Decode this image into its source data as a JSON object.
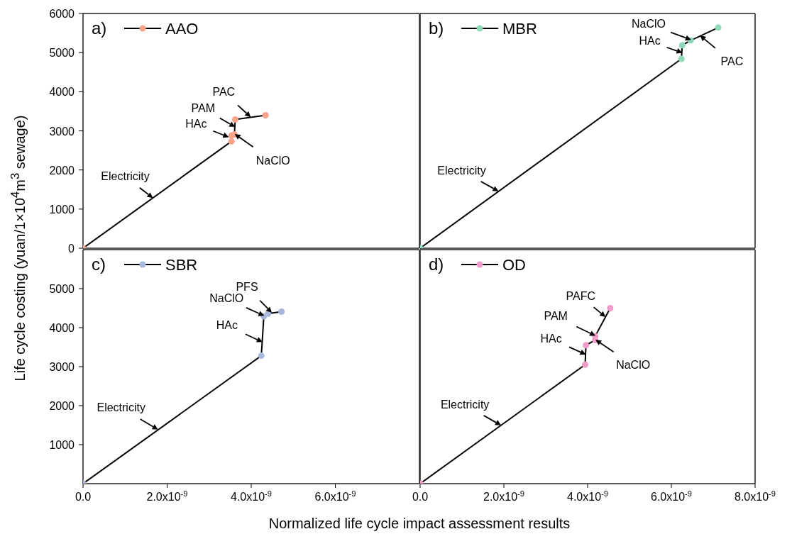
{
  "chart_data": [
    {
      "type": "line",
      "title": "a)",
      "ylabel": "Life cycle costing (yuan/1×10$^{4}$m$^{3}$ sewage)",
      "legend": "top left",
      "marker": "circle",
      "line_style": "solid",
      "tick_labels": "y",
      "xlim": [
        0,
        8e-09
      ],
      "ylim": [
        0,
        6000
      ],
      "yticks": [
        0,
        1000,
        2000,
        3000,
        4000,
        5000,
        6000
      ],
      "series": [
        {
          "name": "AAO",
          "color": "#f9a38a",
          "x": [
            0,
            3.53e-09,
            3.53e-09,
            3.6e-09,
            3.62e-09,
            4.34e-09
          ],
          "values": [
            0,
            2730,
            2880,
            2910,
            3290,
            3400
          ]
        }
      ],
      "annotations": [
        {
          "text": "Electricity",
          "x": 1.66e-09,
          "y": 1280
        },
        {
          "text": "PAC",
          "x": 3.98e-09,
          "y": 3340
        },
        {
          "text": "PAM",
          "x": 3.61e-09,
          "y": 3090
        },
        {
          "text": "HAc",
          "x": 3.46e-09,
          "y": 2830
        },
        {
          "text": "NaClO",
          "x": 3.6e-09,
          "y": 2910
        }
      ]
    },
    {
      "type": "line",
      "title": "b)",
      "legend": "top left",
      "marker": "circle",
      "line_style": "solid",
      "tick_labels": false,
      "xlim": [
        0,
        8e-09
      ],
      "ylim": [
        0,
        6000
      ],
      "series": [
        {
          "name": "MBR",
          "color": "#8fd8b8",
          "x": [
            0,
            6.24e-09,
            6.26e-09,
            6.46e-09,
            7.12e-09
          ],
          "values": [
            0,
            4840,
            5190,
            5310,
            5640
          ]
        }
      ],
      "annotations": [
        {
          "text": "NaClO",
          "x": 6.46e-09,
          "y": 5310
        },
        {
          "text": "HAc",
          "x": 6.25e-09,
          "y": 4980
        },
        {
          "text": "PAC",
          "x": 6.67e-09,
          "y": 5420
        },
        {
          "text": "Electricity",
          "x": 1.87e-09,
          "y": 1450
        }
      ]
    },
    {
      "type": "line",
      "title": "c)",
      "xlabel": "Normalized life cycle impact assessment results",
      "legend": "top left",
      "marker": "circle",
      "line_style": "solid",
      "xlim": [
        0,
        8e-09
      ],
      "xticks": [
        {
          "value": 0,
          "label": "0.0"
        },
        {
          "value": 2e-09,
          "label": "2.0x10$^{-9}$"
        },
        {
          "value": 4e-09,
          "label": "4.0x10$^{-9}$"
        },
        {
          "value": 6e-09,
          "label": "6.0x10$^{-9}$"
        }
      ],
      "ylim": [
        0,
        6000
      ],
      "yticks": [
        1000,
        2000,
        3000,
        4000,
        5000
      ],
      "series": [
        {
          "name": "SBR",
          "color": "#a7b8dc",
          "x": [
            0,
            4.24e-09,
            4.3e-09,
            4.4e-09,
            4.72e-09
          ],
          "values": [
            0,
            3280,
            4290,
            4360,
            4410
          ]
        }
      ],
      "annotations": [
        {
          "text": "PFS",
          "x": 4.48e-09,
          "y": 4370
        },
        {
          "text": "NaClO",
          "x": 4.3e-09,
          "y": 4290
        },
        {
          "text": "HAc",
          "x": 4.26e-09,
          "y": 3620
        },
        {
          "text": "Electricity",
          "x": 1.78e-09,
          "y": 1380
        }
      ]
    },
    {
      "type": "line",
      "title": "d)",
      "legend": "top left",
      "marker": "circle",
      "line_style": "solid",
      "tick_labels": "x",
      "xlim": [
        0,
        8e-09
      ],
      "xticks": [
        {
          "value": 0,
          "label": "0.0"
        },
        {
          "value": 2e-09,
          "label": "2.0x10$^{-9}$"
        },
        {
          "value": 4e-09,
          "label": "4.0x10$^{-9}$"
        },
        {
          "value": 6e-09,
          "label": "6.0x10$^{-9}$"
        },
        {
          "value": 8e-09,
          "label": "8.0x10$^{-9}$"
        }
      ],
      "ylim": [
        0,
        6000
      ],
      "series": [
        {
          "name": "OD",
          "color": "#ef9ccc",
          "x": [
            0,
            3.94e-09,
            3.96e-09,
            4.18e-09,
            4.18e-09,
            4.54e-09
          ],
          "values": [
            0,
            3050,
            3550,
            3680,
            3780,
            4500
          ]
        }
      ],
      "annotations": [
        {
          "text": "PAFC",
          "x": 4.42e-09,
          "y": 4260
        },
        {
          "text": "PAM",
          "x": 4.18e-09,
          "y": 3780
        },
        {
          "text": "HAc",
          "x": 3.95e-09,
          "y": 3300
        },
        {
          "text": "NaClO",
          "x": 4.18e-09,
          "y": 3680
        },
        {
          "text": "Electricity",
          "x": 1.93e-09,
          "y": 1490
        }
      ]
    }
  ]
}
